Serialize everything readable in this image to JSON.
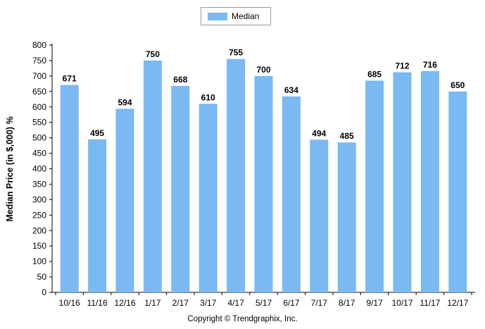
{
  "chart_data": {
    "type": "bar",
    "categories": [
      "10/16",
      "11/16",
      "12/16",
      "1/17",
      "2/17",
      "3/17",
      "4/17",
      "5/17",
      "6/17",
      "7/17",
      "8/17",
      "9/17",
      "10/17",
      "11/17",
      "12/17"
    ],
    "series": [
      {
        "name": "Median",
        "values": [
          671,
          495,
          594,
          750,
          668,
          610,
          755,
          700,
          634,
          494,
          485,
          685,
          712,
          716,
          650
        ]
      }
    ],
    "title": "",
    "xlabel": "",
    "ylabel": "Median Price (in $,000) %",
    "ylim": [
      0,
      800
    ],
    "yticks": [
      0,
      50,
      100,
      150,
      200,
      250,
      300,
      350,
      400,
      450,
      500,
      550,
      600,
      650,
      700,
      750,
      800
    ],
    "grid": false,
    "legend_position": "top-center",
    "bar_color": "#7ab9f2"
  },
  "footer": {
    "copyright": "Copyright © Trendgraphix, Inc."
  }
}
